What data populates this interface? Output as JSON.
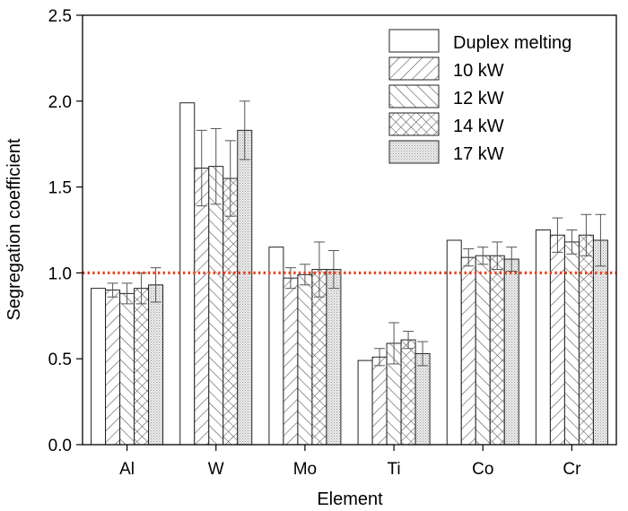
{
  "chart_data": {
    "type": "bar",
    "xlabel": "Element",
    "ylabel": "Segregation coefficient",
    "categories": [
      "Al",
      "W",
      "Mo",
      "Ti",
      "Co",
      "Cr"
    ],
    "ylim": [
      0.0,
      2.5
    ],
    "yticks": [
      "0.0",
      "0.5",
      "1.0",
      "1.5",
      "2.0",
      "2.5"
    ],
    "reference_line": {
      "y": 1.0,
      "style": "dotted",
      "color": "#e8401c"
    },
    "legend_position": "top-right",
    "series": [
      {
        "name": "Duplex melting",
        "pattern": "none",
        "values": [
          0.91,
          1.99,
          1.15,
          0.49,
          1.19,
          1.25
        ],
        "errors": [
          null,
          null,
          null,
          null,
          null,
          null
        ]
      },
      {
        "name": "10 kW",
        "pattern": "forward-diagonal",
        "values": [
          0.9,
          1.61,
          0.97,
          0.51,
          1.09,
          1.22
        ],
        "errors": [
          0.04,
          0.22,
          0.06,
          0.05,
          0.05,
          0.1
        ]
      },
      {
        "name": "12 kW",
        "pattern": "back-diagonal",
        "values": [
          0.88,
          1.62,
          0.99,
          0.59,
          1.1,
          1.18
        ],
        "errors": [
          0.06,
          0.22,
          0.06,
          0.12,
          0.05,
          0.07
        ]
      },
      {
        "name": "14 kW",
        "pattern": "crosshatch",
        "values": [
          0.91,
          1.55,
          1.02,
          0.61,
          1.1,
          1.22
        ],
        "errors": [
          0.09,
          0.22,
          0.16,
          0.05,
          0.08,
          0.12
        ]
      },
      {
        "name": "17 kW",
        "pattern": "dots",
        "values": [
          0.93,
          1.83,
          1.02,
          0.53,
          1.08,
          1.19
        ],
        "errors": [
          0.1,
          0.17,
          0.11,
          0.07,
          0.07,
          0.15
        ]
      }
    ]
  }
}
